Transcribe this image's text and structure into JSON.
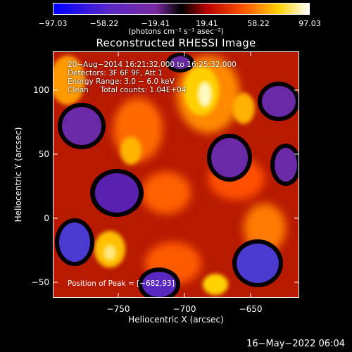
{
  "colorbar": {
    "ticks": [
      "−97.03",
      "−58.22",
      "−19.41",
      "19.41",
      "58.22",
      "97.03"
    ],
    "units": "(photons cm⁻² s⁻¹ asec⁻²)"
  },
  "image": {
    "title": "Reconstructed RHESSI Image",
    "info_lines": [
      "20−Aug−2014 16:21:32.000 to 16:25:32.000",
      "Detectors: 3F 6F 9F, Att 1",
      "Energy Range: 3.0 − 6.0 keV",
      "Clean     Total counts: 1.04E+04"
    ],
    "peak_label": "Position of Peak = [−682,93]"
  },
  "axes": {
    "xlabel": "Heliocentric X (arcsec)",
    "ylabel": "Heliocentric Y (arcsec)",
    "xticks": [
      "−750",
      "−700",
      "−650"
    ],
    "yticks": [
      "100",
      "50",
      "0",
      "−50"
    ],
    "x_values": [
      -750,
      -700,
      -650
    ],
    "y_values": [
      100,
      50,
      0,
      -50
    ],
    "xrange": [
      -795,
      -610
    ],
    "yrange": [
      -62,
      124
    ]
  },
  "footer": {
    "date": "16−May−2022 06:04"
  },
  "colors": {
    "min": "#0000ff",
    "mid_low": "#6a2aa8",
    "mid": "#000000",
    "mid_high": "#c81e00",
    "max": "#ffffff"
  }
}
